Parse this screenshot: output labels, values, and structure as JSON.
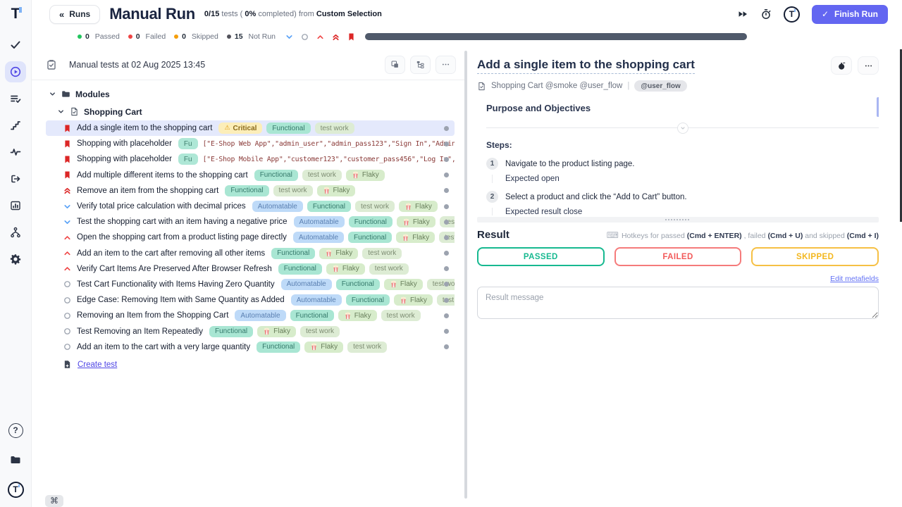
{
  "colors": {
    "accent": "#6366f1",
    "passed": "#17b990",
    "failed": "#f25a5a",
    "skipped": "#f3b71e",
    "progress_bar": "#505a6b",
    "selected_row": "#e4e9fc"
  },
  "icons_glyphs": {
    "back_chevrons": "«",
    "check": "✓",
    "cmd": "⌘",
    "warning": "⚠",
    "keyboard": "⌨"
  },
  "rail": {
    "logo": "T",
    "items": [
      {
        "icon": "checkmark-icon",
        "active": false
      },
      {
        "icon": "play-circle-icon",
        "active": true
      },
      {
        "icon": "list-check-icon",
        "active": false
      },
      {
        "icon": "stairs-icon",
        "active": false
      },
      {
        "icon": "pulse-icon",
        "active": false
      },
      {
        "icon": "import-icon",
        "active": false
      },
      {
        "icon": "analytics-icon",
        "active": false
      },
      {
        "icon": "branch-icon",
        "active": false
      },
      {
        "icon": "gear-icon",
        "active": false
      }
    ],
    "bottom": [
      {
        "icon": "help-icon"
      },
      {
        "icon": "folder-icon"
      },
      {
        "icon": "logo-badge-icon"
      }
    ]
  },
  "header": {
    "back_label": "Runs",
    "title": "Manual Run",
    "subtitle_parts": [
      {
        "text": "0/15",
        "bold": true
      },
      {
        "text": " tests ( ",
        "bold": false
      },
      {
        "text": "0%",
        "bold": true
      },
      {
        "text": " completed) from ",
        "bold": false
      },
      {
        "text": "Custom Selection",
        "bold": true
      }
    ],
    "finish_button": "Finish Run"
  },
  "status_bar": {
    "progress_percent": 0,
    "counters": [
      {
        "value": "0",
        "label": "Passed",
        "dot": "#22c55e"
      },
      {
        "value": "0",
        "label": "Failed",
        "dot": "#ef4444"
      },
      {
        "value": "0",
        "label": "Skipped",
        "dot": "#f59e0b"
      },
      {
        "value": "15",
        "label": "Not Run",
        "dot": "#52525b"
      }
    ],
    "filters": [
      {
        "icon": "chevron-down-icon"
      },
      {
        "icon": "circle-icon"
      },
      {
        "icon": "chevron-up-icon"
      },
      {
        "icon": "chevrons-up-icon"
      },
      {
        "icon": "bookmark-icon"
      }
    ]
  },
  "left_panel": {
    "toolbar_title": "Manual tests at 02 Aug 2025 13:45",
    "module_label": "Modules",
    "suite_label": "Shopping Cart",
    "create_test_label": "Create test",
    "shortcut_key": "⌘",
    "tests": [
      {
        "icon": "bookmark-icon",
        "selected": true,
        "title": "Add a single item to the shopping cart",
        "badges": [
          {
            "type": "critical",
            "label": "Critical"
          },
          {
            "type": "functional",
            "label": "Functional"
          },
          {
            "type": "testwork",
            "label": "test work"
          }
        ]
      },
      {
        "icon": "bookmark-icon",
        "selected": false,
        "title": "Shopping with placeholder",
        "badges": [
          {
            "type": "fu",
            "label": "Fu"
          }
        ],
        "mono": "[\"E-Shop Web App\",\"admin_user\",\"admin_pass123\",\"Sign In\",\"Admin Dash…"
      },
      {
        "icon": "bookmark-icon",
        "selected": false,
        "title": "Shopping with placeholder",
        "badges": [
          {
            "type": "fu",
            "label": "Fu"
          }
        ],
        "mono": "[\"E-Shop Mobile App\",\"customer123\",\"customer_pass456\",\"Log In\",\"Welc…"
      },
      {
        "icon": "bookmark-icon",
        "selected": false,
        "title": "Add multiple different items to the shopping cart",
        "badges": [
          {
            "type": "functional",
            "label": "Functional"
          },
          {
            "type": "testwork",
            "label": "test work"
          },
          {
            "type": "flaky",
            "label": "Flaky"
          }
        ]
      },
      {
        "icon": "chevrons-up-icon",
        "selected": false,
        "title": "Remove an item from the shopping cart",
        "badges": [
          {
            "type": "functional",
            "label": "Functional"
          },
          {
            "type": "testwork",
            "label": "test work"
          },
          {
            "type": "flaky",
            "label": "Flaky"
          }
        ]
      },
      {
        "icon": "chevron-down-icon",
        "selected": false,
        "title": "Verify total price calculation with decimal prices",
        "badges": [
          {
            "type": "automatable",
            "label": "Automatable"
          },
          {
            "type": "functional",
            "label": "Functional"
          },
          {
            "type": "testwork",
            "label": "test work"
          },
          {
            "type": "flaky",
            "label": "Flaky"
          }
        ]
      },
      {
        "icon": "chevron-down-icon",
        "selected": false,
        "title": "Test the shopping cart with an item having a negative price",
        "badges": [
          {
            "type": "automatable",
            "label": "Automatable"
          },
          {
            "type": "functional",
            "label": "Functional"
          },
          {
            "type": "flaky",
            "label": "Flaky"
          },
          {
            "type": "testwork",
            "label": "test work"
          }
        ]
      },
      {
        "icon": "chevron-up-icon",
        "selected": false,
        "title": "Open the shopping cart from a product listing page directly",
        "badges": [
          {
            "type": "automatable",
            "label": "Automatable"
          },
          {
            "type": "functional",
            "label": "Functional"
          },
          {
            "type": "flaky",
            "label": "Flaky"
          },
          {
            "type": "testwork",
            "label": "test work"
          }
        ]
      },
      {
        "icon": "chevron-up-icon",
        "selected": false,
        "title": "Add an item to the cart after removing all other items",
        "badges": [
          {
            "type": "functional",
            "label": "Functional"
          },
          {
            "type": "flaky",
            "label": "Flaky"
          },
          {
            "type": "testwork",
            "label": "test work"
          }
        ]
      },
      {
        "icon": "chevron-up-icon",
        "selected": false,
        "title": "Verify Cart Items Are Preserved After Browser Refresh",
        "badges": [
          {
            "type": "functional",
            "label": "Functional"
          },
          {
            "type": "flaky",
            "label": "Flaky"
          },
          {
            "type": "testwork",
            "label": "test work"
          }
        ]
      },
      {
        "icon": "circle-icon",
        "selected": false,
        "title": "Test Cart Functionality with Items Having Zero Quantity",
        "badges": [
          {
            "type": "automatable",
            "label": "Automatable"
          },
          {
            "type": "functional",
            "label": "Functional"
          },
          {
            "type": "flaky",
            "label": "Flaky"
          },
          {
            "type": "testwork",
            "label": "test work"
          }
        ]
      },
      {
        "icon": "circle-icon",
        "selected": false,
        "title": "Edge Case: Removing Item with Same Quantity as Added",
        "badges": [
          {
            "type": "automatable",
            "label": "Automatable"
          },
          {
            "type": "functional",
            "label": "Functional"
          },
          {
            "type": "flaky",
            "label": "Flaky"
          },
          {
            "type": "testwork",
            "label": "test work"
          }
        ]
      },
      {
        "icon": "circle-icon",
        "selected": false,
        "title": "Removing an Item from the Shopping Cart",
        "badges": [
          {
            "type": "automatable",
            "label": "Automatable"
          },
          {
            "type": "functional",
            "label": "Functional"
          },
          {
            "type": "flaky",
            "label": "Flaky"
          },
          {
            "type": "testwork",
            "label": "test work"
          }
        ]
      },
      {
        "icon": "circle-icon",
        "selected": false,
        "title": "Test Removing an Item Repeatedly",
        "badges": [
          {
            "type": "functional",
            "label": "Functional"
          },
          {
            "type": "flaky",
            "label": "Flaky"
          },
          {
            "type": "testwork",
            "label": "test work"
          }
        ]
      },
      {
        "icon": "circle-icon",
        "selected": false,
        "title": "Add an item to the cart with a very large quantity",
        "badges": [
          {
            "type": "functional",
            "label": "Functional"
          },
          {
            "type": "flaky",
            "label": "Flaky"
          },
          {
            "type": "testwork",
            "label": "test work"
          }
        ]
      }
    ]
  },
  "detail_panel": {
    "title": "Add a single item to the shopping cart",
    "breadcrumb": "Shopping Cart @smoke @user_flow",
    "breadcrumb_sep": "|",
    "tag_pill": "@user_flow",
    "content": {
      "heading": "Purpose and Objectives",
      "steps_label": "Steps:",
      "steps": [
        {
          "num": "1",
          "action": "Navigate to the product listing page.",
          "expected": "Expected open"
        },
        {
          "num": "2",
          "action": "Select a product and click the “Add to Cart” button.",
          "expected": "Expected result close"
        }
      ]
    },
    "result": {
      "heading": "Result",
      "hotkeys_parts": [
        {
          "text": "Hotkeys for passed ",
          "bold": false
        },
        {
          "text": "(Cmd + ENTER)",
          "bold": true
        },
        {
          "text": " , failed ",
          "bold": false
        },
        {
          "text": "(Cmd + U)",
          "bold": true
        },
        {
          "text": " and skipped ",
          "bold": false
        },
        {
          "text": "(Cmd + I)",
          "bold": true
        }
      ],
      "buttons": [
        {
          "label": "PASSED",
          "type": "passed"
        },
        {
          "label": "FAILED",
          "type": "failed"
        },
        {
          "label": "SKIPPED",
          "type": "skipped"
        }
      ],
      "edit_link": "Edit metafields",
      "message_placeholder": "Result message"
    }
  }
}
